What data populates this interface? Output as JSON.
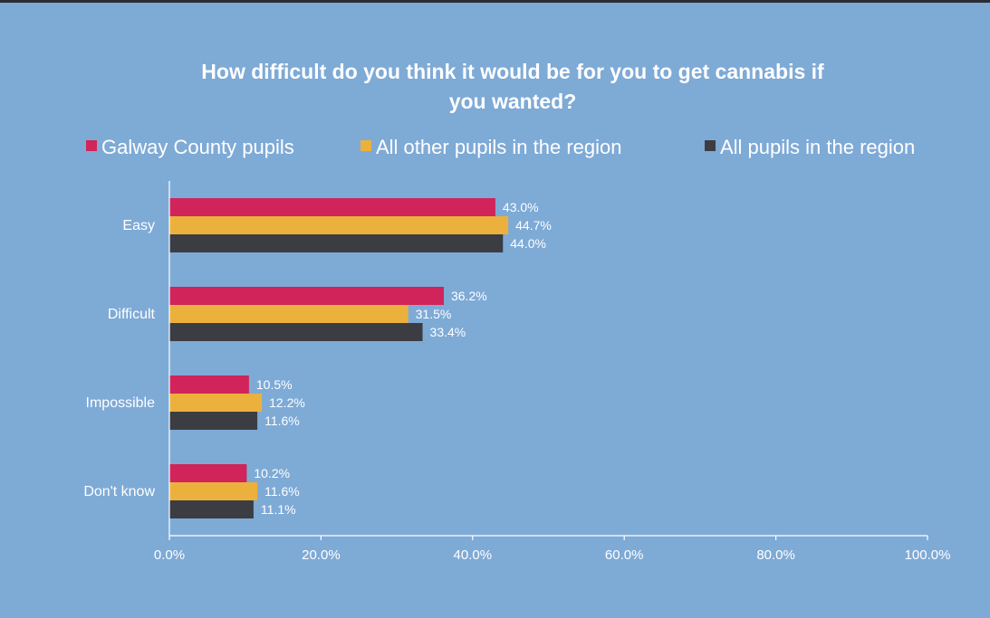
{
  "chart_data": {
    "type": "bar",
    "orientation": "horizontal",
    "title": "How difficult do you think it would be for you to get cannabis if you wanted?",
    "title_lines": [
      "How difficult do you think it would be for you to get cannabis if",
      "you wanted?"
    ],
    "categories": [
      "Easy",
      "Difficult",
      "Impossible",
      "Don't know"
    ],
    "series": [
      {
        "name": "Galway County pupils",
        "color": "#d0245a",
        "values": [
          43.0,
          36.2,
          10.5,
          10.2
        ],
        "labels": [
          "43.0%",
          "36.2%",
          "10.5%",
          "10.2%"
        ]
      },
      {
        "name": "All other pupils in the region",
        "color": "#ecb13d",
        "values": [
          44.7,
          31.5,
          12.2,
          11.6
        ],
        "labels": [
          "44.7%",
          "31.5%",
          "12.2%",
          "11.6%"
        ]
      },
      {
        "name": "All pupils in the region",
        "color": "#3c3d42",
        "values": [
          44.0,
          33.4,
          11.6,
          11.1
        ],
        "labels": [
          "44.0%",
          "33.4%",
          "11.6%",
          "11.1%"
        ]
      }
    ],
    "xlim": [
      0,
      100
    ],
    "x_ticks": [
      0,
      20,
      40,
      60,
      80,
      100
    ],
    "x_tick_labels": [
      "0.0%",
      "20.0%",
      "40.0%",
      "60.0%",
      "80.0%",
      "100.0%"
    ],
    "xlabel": "",
    "ylabel": "",
    "grid": false,
    "legend_position": "top"
  },
  "colors": {
    "background": "#7eaad6",
    "text": "#ffffff",
    "axis": "#ffffff"
  }
}
